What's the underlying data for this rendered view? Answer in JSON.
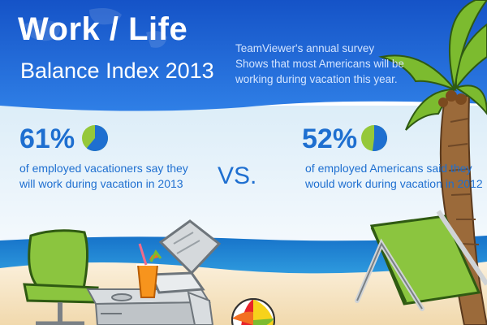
{
  "header": {
    "title": "Work / Life",
    "subtitle": "Balance Index 2013",
    "survey_lines": [
      "TeamViewer's annual survey",
      "Shows that most Americans will be",
      "working during vacation this year."
    ]
  },
  "stats": {
    "left": {
      "percent": "61%",
      "value": 0.61,
      "desc_lines": [
        "of employed vacationers say they",
        "will work during vacation in 2013"
      ]
    },
    "vs": "VS.",
    "right": {
      "percent": "52%",
      "value": 0.52,
      "desc_lines": [
        "of employed Americans said they",
        "would work during vacation in 2012"
      ]
    }
  },
  "colors": {
    "header_blue": "#1a5fd0",
    "text_blue": "#1e6fd0",
    "pie_blue": "#1e6fd0",
    "pie_green": "#95c83a",
    "sky": "#e8f3fb",
    "sea": "#1d8fd6",
    "sand": "#f7e4c2"
  },
  "icons": [
    "pie-chart-icon",
    "palm-tree-icon",
    "lounge-chair-icon",
    "laptop-icon",
    "cocktail-icon",
    "beach-ball-icon",
    "office-chair-icon",
    "desk-icon",
    "world-map-icon"
  ]
}
